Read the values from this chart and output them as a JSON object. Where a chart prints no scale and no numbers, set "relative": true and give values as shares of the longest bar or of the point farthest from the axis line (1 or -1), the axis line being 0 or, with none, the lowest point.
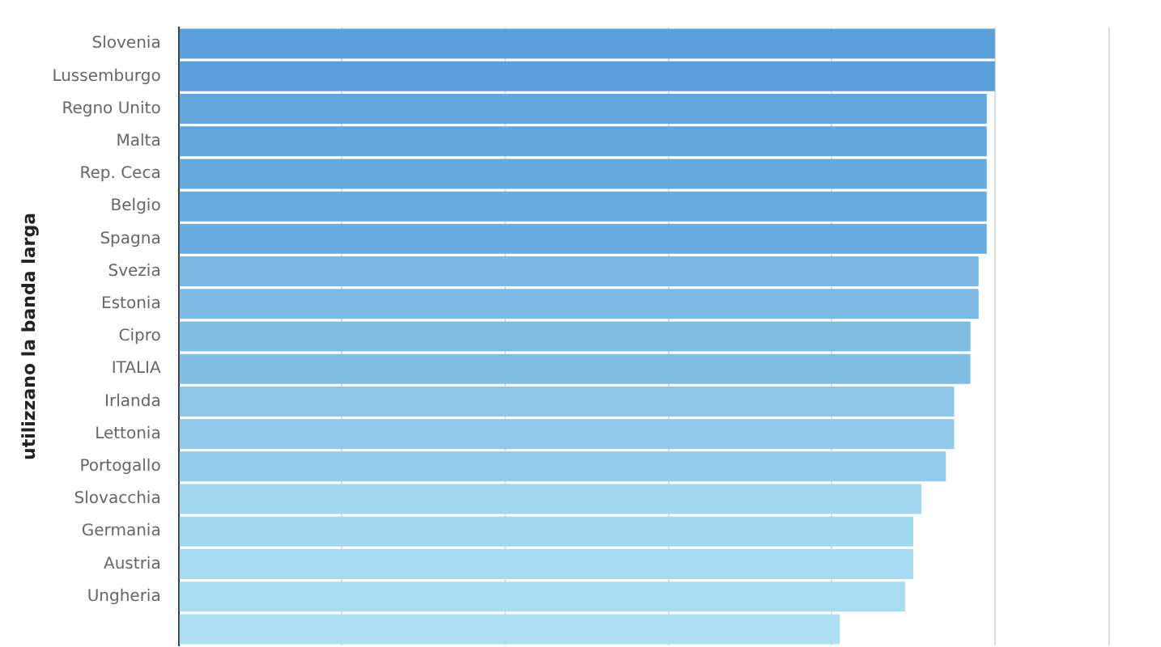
{
  "chart_data": {
    "type": "bar",
    "orientation": "horizontal",
    "relative": true,
    "ylabel": "utilizzano la banda larga",
    "grid": "x",
    "categories": [
      "Slovenia",
      "Lussemburgo",
      "Regno Unito",
      "Malta",
      "Rep. Ceca",
      "Belgio",
      "Spagna",
      "Svezia",
      "Estonia",
      "Cipro",
      "ITALIA",
      "Irlanda",
      "Lettonia",
      "Portogallo",
      "Slovacchia",
      "Germania",
      "Austria",
      "Ungheria",
      null
    ],
    "values": [
      1,
      1,
      0.99,
      0.99,
      0.99,
      0.99,
      0.99,
      0.98,
      0.98,
      0.97,
      0.97,
      0.95,
      0.95,
      0.94,
      0.91,
      0.9,
      0.9,
      0.89,
      0.81
    ],
    "colors": [
      "#5aa0db",
      "#5aa0db",
      "#63a7de",
      "#63a7de",
      "#67aadf",
      "#6aacdf",
      "#6aacdf",
      "#78b8e3",
      "#7bbae4",
      "#7fbde5",
      "#80bee5",
      "#8cc7e9",
      "#90c9ea",
      "#93cceb",
      "#a0d7ef",
      "#a3d9f0",
      "#a5daf0",
      "#a8dcf1",
      "#addff2"
    ]
  }
}
